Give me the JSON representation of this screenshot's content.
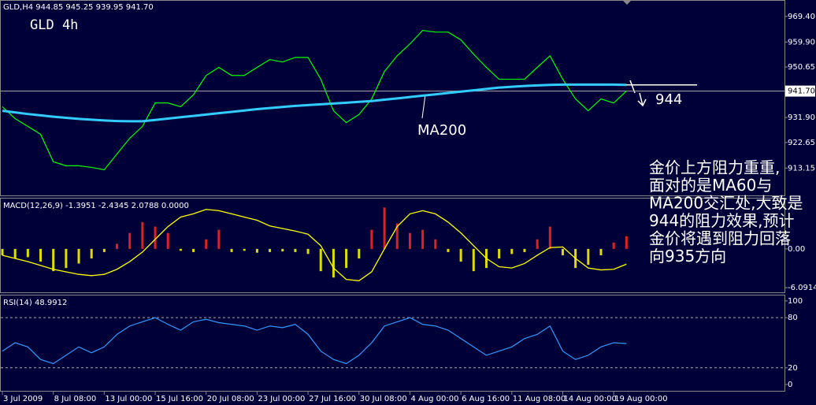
{
  "chart_data": [
    {
      "type": "line",
      "title": "GLD 4h",
      "subtitle": "GLD,H4 944.85 945.25 939.95 941.70",
      "categories": [
        "3 Jul 2009",
        null,
        null,
        null,
        "8 Jul 08:00",
        null,
        null,
        null,
        "13 Jul 00:00",
        null,
        null,
        null,
        "15 Jul 16:00",
        null,
        null,
        null,
        "20 Jul 08:00",
        null,
        null,
        null,
        "23 Jul 00:00",
        null,
        null,
        null,
        "27 Jul 16:00",
        null,
        null,
        null,
        "30 Jul 08:00",
        null,
        null,
        null,
        "4 Aug 00:00",
        null,
        null,
        null,
        "6 Aug 16:00",
        null,
        null,
        null,
        "11 Aug 08:00",
        null,
        null,
        null,
        "14 Aug 00:00",
        null,
        null,
        null,
        "19 Aug 00:00",
        null
      ],
      "series": [
        {
          "color": "#00ff00",
          "values": [
            935.9,
            931.5,
            928.6,
            925.7,
            915.5,
            914,
            914,
            913.4,
            912.5,
            918.4,
            924.2,
            928.6,
            937.3,
            937.3,
            935.9,
            940.3,
            947.5,
            950.5,
            947.5,
            947.5,
            950.5,
            953.4,
            952.5,
            954.2,
            954.2,
            946.1,
            934.4,
            930,
            933,
            938.8,
            949,
            954.8,
            959.2,
            964.2,
            963.6,
            963.6,
            960.7,
            955.4,
            950.5,
            946.1,
            946.1,
            946.1,
            950.5,
            954.8,
            946.1,
            938.8,
            934.4,
            938.8,
            937.3,
            941.7
          ]
        },
        {
          "name": "MA200",
          "color": "#33ccff",
          "values": [
            934.4,
            933.8,
            933.2,
            932.7,
            932.2,
            931.8,
            931.4,
            931.1,
            930.8,
            930.6,
            930.5,
            930.5,
            931,
            931.5,
            932,
            932.5,
            933,
            933.5,
            934,
            934.5,
            935,
            935.4,
            935.8,
            936.2,
            936.5,
            936.8,
            937.1,
            937.4,
            937.7,
            938,
            938.5,
            939,
            939.5,
            940,
            940.5,
            941,
            941.5,
            942,
            942.5,
            943,
            943.3,
            943.6,
            943.8,
            944,
            944.1,
            944.1,
            944.1,
            944.1,
            944.1,
            944
          ]
        }
      ],
      "ylim": [
        903,
        975.2
      ],
      "yticks": [
        {
          "value": 969.4,
          "label": "969.40"
        },
        {
          "value": 959.9,
          "label": "959.90"
        },
        950.65,
        {
          "value": 941.7,
          "label": "941.70"
        },
        {
          "value": 931.9,
          "label": "931.90"
        },
        922.65,
        913.15
      ],
      "resistance": 944,
      "note_lines": [
        "金价上方阻力重重,",
        "面对的是MA60与",
        "MA200交汇处,大致是",
        "944的阻力效果,预计",
        "金价将遇到阻力回落",
        "向935方向"
      ]
    },
    {
      "type": "macd",
      "title": "MACD(12,26,9) -1.3951 -2.4345 2.0788 0.0000",
      "series": [
        {
          "color": "#dd2222",
          "negative_color": "#dddd00",
          "values": [
            -1,
            -1.5,
            -1.3,
            -2,
            -3.5,
            -3,
            -2.3,
            -1.5,
            -0.5,
            0.8,
            2.5,
            4.2,
            3.5,
            2.5,
            -0.3,
            -0.5,
            1.5,
            3,
            -0.5,
            -0.3,
            -0.6,
            -0.5,
            -0.4,
            -0.5,
            -0.8,
            -3.5,
            -4.5,
            -3,
            -1.5,
            3,
            6.5,
            4,
            2.5,
            3,
            1.5,
            -0.5,
            -2,
            -3.5,
            -3,
            -1.5,
            -0.8,
            -0.5,
            1.5,
            3.5,
            -1,
            -3,
            -2.5,
            -1,
            1,
            2
          ]
        },
        {
          "color": "#ffff00",
          "values": [
            -1,
            -1.5,
            -2,
            -2.6,
            -3.2,
            -3.6,
            -4,
            -4.2,
            -4,
            -3.2,
            -2,
            -0.5,
            1.5,
            3.5,
            5,
            5.5,
            6.2,
            6,
            5.5,
            5,
            4.5,
            3.6,
            3.2,
            2.8,
            2.3,
            0.5,
            -3,
            -4.8,
            -5,
            -3.6,
            0,
            3.5,
            5.5,
            6,
            5.5,
            4.2,
            2.5,
            0.5,
            -1.5,
            -2.8,
            -3,
            -2.3,
            -1,
            0.2,
            0.3,
            -1.5,
            -3,
            -3.3,
            -3.2,
            -2.4
          ]
        }
      ],
      "ylim": [
        -6.82,
        7.9
      ],
      "yticks": [
        {
          "value": 0,
          "label": "0.00"
        },
        -6.0914
      ]
    },
    {
      "type": "line",
      "title": "RSI(14) 48.9912",
      "series": [
        {
          "color": "#3399ff",
          "values": [
            40,
            50,
            45,
            30,
            25,
            35,
            45,
            38,
            45,
            60,
            70,
            75,
            80,
            72,
            65,
            75,
            78,
            74,
            72,
            70,
            65,
            70,
            68,
            72,
            60,
            40,
            30,
            25,
            35,
            50,
            70,
            75,
            80,
            72,
            70,
            65,
            55,
            45,
            35,
            40,
            45,
            55,
            60,
            70,
            40,
            30,
            35,
            45,
            50,
            49
          ]
        }
      ],
      "ylim": [
        -7.5,
        106.5
      ],
      "yticks": [
        0,
        20,
        80,
        100
      ],
      "levels": [
        20,
        80
      ]
    }
  ]
}
